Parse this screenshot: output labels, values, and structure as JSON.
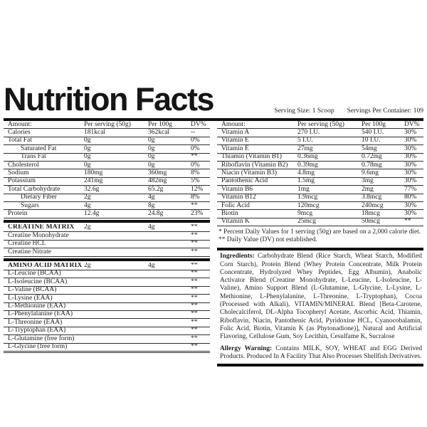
{
  "title": "Nutrition Facts",
  "serving_info": {
    "serving_size": "Serving Size: 1 Scoop",
    "servings_per_container": "Servings Per Container: 109"
  },
  "left_table": {
    "headers": [
      "Amount:",
      "Per serving (50g)",
      "Per 100g",
      "DV%"
    ],
    "rows": [
      {
        "name": "Calories",
        "serving": "181kcal",
        "per100": "362kcal",
        "dv": "--"
      },
      {
        "name": "Total Fat",
        "serving": "0g",
        "per100": "0g",
        "dv": "0%"
      },
      {
        "name": "Saturated Fat",
        "serving": "0g",
        "per100": "0g",
        "dv": "0%",
        "indent": true
      },
      {
        "name": "Trans Fat",
        "serving": "0g",
        "per100": "0g",
        "dv": "**",
        "indent": true
      },
      {
        "name": "Cholesterol",
        "serving": "0g",
        "per100": "0g",
        "dv": "0%"
      },
      {
        "name": "Sodium",
        "serving": "180mg",
        "per100": "360mg",
        "dv": "8%"
      },
      {
        "name": "Potassium",
        "serving": "241mg",
        "per100": "482mg",
        "dv": "5%"
      },
      {
        "name": "Total Carbohydrate",
        "serving": "32.6g",
        "per100": "65.2g",
        "dv": "12%"
      },
      {
        "name": "Dietary Fiber",
        "serving": "2g",
        "per100": "4g",
        "dv": "8%",
        "indent": true
      },
      {
        "name": "Sugars",
        "serving": "4g",
        "per100": "8g",
        "dv": "**",
        "indent": true
      },
      {
        "name": "Protein",
        "serving": "12.4g",
        "per100": "24.8g",
        "dv": "23%"
      },
      {
        "name": "CREATINE MATRIX",
        "serving": "2g",
        "per100": "4g",
        "dv": "**",
        "bold": true,
        "divider_before": true
      },
      {
        "name": "Creatine Monohydrate",
        "serving": "",
        "per100": "",
        "dv": "**"
      },
      {
        "name": "Creatine HCL",
        "serving": "",
        "per100": "",
        "dv": "**"
      },
      {
        "name": "Creatine Nitrate",
        "serving": "",
        "per100": "",
        "dv": "**"
      },
      {
        "name": "AMINO ACID MATRIX",
        "serving": "2g",
        "per100": "4g",
        "dv": "**",
        "bold": true,
        "divider_before": true
      },
      {
        "name": "L-Leucine (BCAA)",
        "serving": "",
        "per100": "",
        "dv": "**"
      },
      {
        "name": "L-Isoleucine (BCAA)",
        "serving": "",
        "per100": "",
        "dv": "**"
      },
      {
        "name": "L-Valine (BCAA)",
        "serving": "",
        "per100": "",
        "dv": "**"
      },
      {
        "name": "L-Lysine (EAA)",
        "serving": "",
        "per100": "",
        "dv": "**"
      },
      {
        "name": "L-Methionine (EAA)",
        "serving": "",
        "per100": "",
        "dv": "**"
      },
      {
        "name": "L-Phenylalanine (EAA)",
        "serving": "",
        "per100": "",
        "dv": "**"
      },
      {
        "name": "L-Threonine (EAA)",
        "serving": "",
        "per100": "",
        "dv": "**"
      },
      {
        "name": "L-Tryptophan (EAA)",
        "serving": "",
        "per100": "",
        "dv": "**"
      },
      {
        "name": "L-Glutamine (free form)",
        "serving": "",
        "per100": "",
        "dv": "**"
      },
      {
        "name": "L-Glycine (free form)",
        "serving": "",
        "per100": "",
        "dv": "**",
        "last": true
      }
    ]
  },
  "right_table": {
    "headers": [
      "Amount:",
      "Per serving (50g)",
      "Per 100g",
      "DV%"
    ],
    "rows": [
      {
        "name": "Vitamin A",
        "serving": "270 I.U.",
        "per100": "540 I.U.",
        "dv": "30%"
      },
      {
        "name": "Vitamin E",
        "serving": "5 I.U.",
        "per100": "10 I.U.",
        "dv": "30%"
      },
      {
        "name": "Vitamin E",
        "serving": "27mg",
        "per100": "54mg",
        "dv": "30%"
      },
      {
        "name": "Thiamin (Vitamin B1)",
        "serving": "0.36mg",
        "per100": "0.72mg",
        "dv": "30%"
      },
      {
        "name": "Riboflavin (Vitamin B2)",
        "serving": "0.39mg",
        "per100": "0.78mg",
        "dv": "30%"
      },
      {
        "name": "Niacin (Vitamin B3)",
        "serving": "4.8mg",
        "per100": "9.6mg",
        "dv": "30%"
      },
      {
        "name": "Pantothenic Acid",
        "serving": "1.5mg",
        "per100": "3mg",
        "dv": "30%"
      },
      {
        "name": "Vitamin B6",
        "serving": "1mg",
        "per100": "2mg",
        "dv": "77%"
      },
      {
        "name": "Vitamin B12",
        "serving": "1.9mcg",
        "per100": "3.8mcg",
        "dv": "80%"
      },
      {
        "name": "Folic Acid",
        "serving": "120mcg",
        "per100": "240mcg",
        "dv": "30%"
      },
      {
        "name": "Biotin",
        "serving": "9mcg",
        "per100": "18mcg",
        "dv": "30%"
      },
      {
        "name": "Vitamin K",
        "serving": "25mcg",
        "per100": "50mcg",
        "dv": "**"
      }
    ]
  },
  "footnotes": [
    "* Percent Daily Values for 1 serving (50g) are based on a 2,000 calorie diet.",
    "** Daily Value (DV) not established."
  ],
  "ingredients": {
    "label": "Ingredients:",
    "text": " Carbohydrate Blend (Rice Starch, Wheat Starch, Modified Corn Starch), Protein Blend (Whey Protein Concentrate, Milk Protein Concentrate, Hydrolyzed Whey Peptides, Egg Albumin), Anabolic Activator Blend (Creatine Monohydrate, L-Leucine, L-Isoleucine, L-Valine), Amino Support Blend (L-Glutamine, L-Glycine, L-Lysine, L-Methionine, L-Phenylalanine, L-Threonine, L-Tryptophan), Cocoa (Processed with Alkali), VITAMIN/MINERAL Blend [Beta-Carotene, Cholecalciferol, DL-Alpha Tocopheryl Acetate, Ascorbic Acid, Thiamin, Riboflavin, Niacin, Pantothenic Acid, Pyridoxine HCL, Cyanocobalamin, Folic Acid, Biotin, Vitamin K (as Phytonadione)], Natural and Artificial Flavoring, Cellulose Gum, Soy Lecithin, Cesulfame K, Sucralose"
  },
  "allergy": {
    "label": "Allergy Warning:",
    "text": " Contains MILK, SOY, WHEAT and EGG Derived Products. Produced In A Facility That Also Processes Shellfish Derivatives."
  },
  "colors": {
    "text": "#1c1c1c",
    "rule": "#2e2e2e",
    "thick_bar": "#101010",
    "background": "#ffffff"
  }
}
